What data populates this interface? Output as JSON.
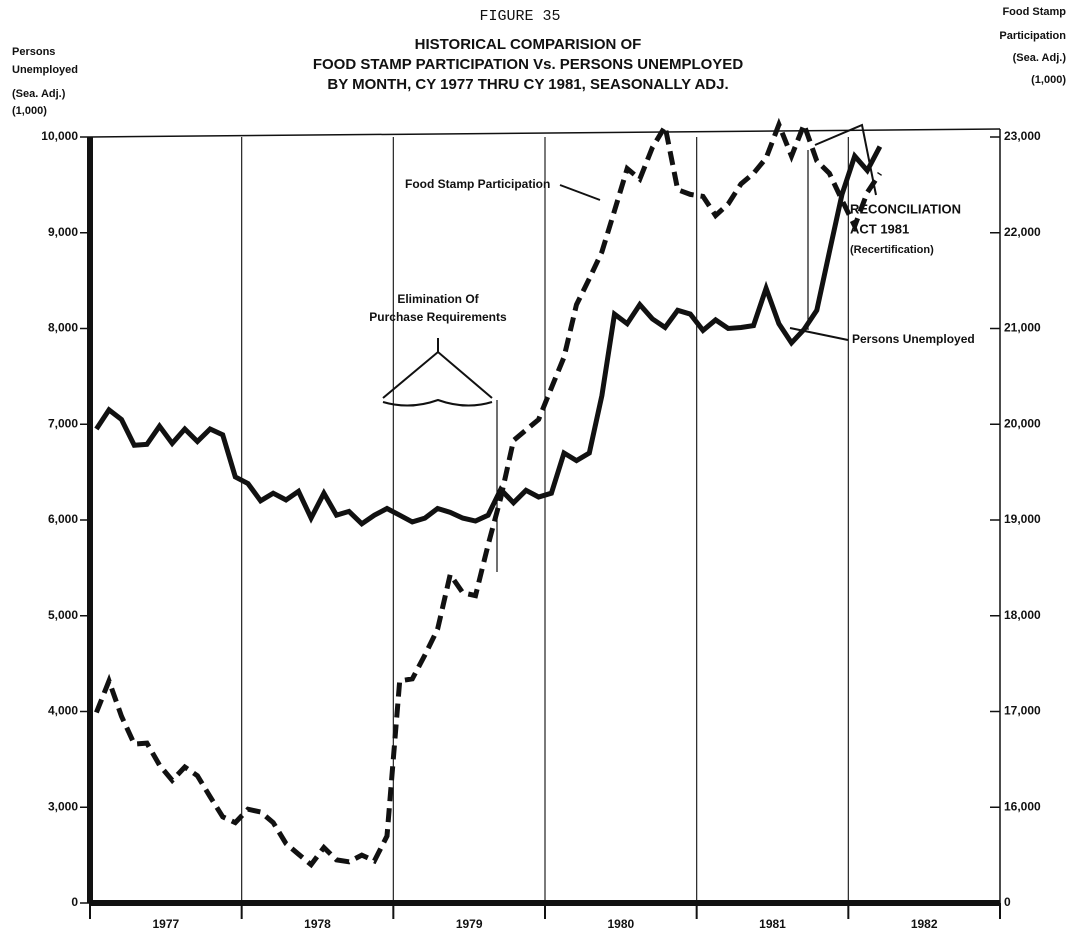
{
  "chart_data": {
    "type": "line",
    "figure_label": "FIGURE 35",
    "title": [
      "HISTORICAL COMPARISION OF",
      "FOOD STAMP PARTICIPATION Vs. PERSONS UNEMPLOYED",
      "BY MONTH, CY 1977 THRU CY 1981, SEASONALLY ADJ."
    ],
    "y_label": [
      "Persons",
      "Unemployed",
      "(Sea. Adj.)",
      "(1,000)"
    ],
    "y2_label": [
      "Food Stamp",
      "Participation",
      "(Sea. Adj.)",
      "(1,000)"
    ],
    "categories": [
      "1977",
      "1978",
      "1979",
      "1980",
      "1981",
      "1982"
    ],
    "xlim": [
      1977,
      1983
    ],
    "xticks": [
      1977,
      1978,
      1979,
      1980,
      1981,
      1982,
      1983
    ],
    "x": [
      1977.042,
      1977.125,
      1977.208,
      1977.292,
      1977.375,
      1977.458,
      1977.542,
      1977.625,
      1977.708,
      1977.792,
      1977.875,
      1977.958,
      1978.042,
      1978.125,
      1978.208,
      1978.292,
      1978.375,
      1978.458,
      1978.542,
      1978.625,
      1978.708,
      1978.792,
      1978.875,
      1978.958,
      1979.042,
      1979.125,
      1979.208,
      1979.292,
      1979.375,
      1979.458,
      1979.542,
      1979.625,
      1979.708,
      1979.792,
      1979.875,
      1979.958,
      1980.042,
      1980.125,
      1980.208,
      1980.292,
      1980.375,
      1980.458,
      1980.542,
      1980.625,
      1980.708,
      1980.792,
      1980.875,
      1980.958,
      1981.042,
      1981.125,
      1981.208,
      1981.292,
      1981.375,
      1981.458,
      1981.542,
      1981.625,
      1981.708,
      1981.792,
      1981.875,
      1981.958,
      1982.042,
      1982.125,
      1982.208
    ],
    "ylim": [
      0,
      10000
    ],
    "ybreak": [
      0,
      2000
    ],
    "yticks": [
      {
        "value": 0,
        "label": "0"
      },
      {
        "value": 3000,
        "label": "3,000"
      },
      {
        "value": 4000,
        "label": "4,000"
      },
      {
        "value": 5000,
        "label": "5,000"
      },
      {
        "value": 6000,
        "label": "6,000"
      },
      {
        "value": 7000,
        "label": "7,000"
      },
      {
        "value": 8000,
        "label": "8,000"
      },
      {
        "value": 9000,
        "label": "9,000"
      },
      {
        "value": 10000,
        "label": "10,000"
      }
    ],
    "y2lim": [
      0,
      23000
    ],
    "y2break": [
      0,
      15000
    ],
    "y2ticks": [
      {
        "value": 0,
        "label": "0"
      },
      {
        "value": 16000,
        "label": "16,000"
      },
      {
        "value": 17000,
        "label": "17,000"
      },
      {
        "value": 18000,
        "label": "18,000"
      },
      {
        "value": 19000,
        "label": "19,000"
      },
      {
        "value": 20000,
        "label": "20,000"
      },
      {
        "value": 21000,
        "label": "21,000"
      },
      {
        "value": 22000,
        "label": "22,000"
      },
      {
        "value": 23000,
        "label": "23,000"
      }
    ],
    "grid": true,
    "series": [
      {
        "name": "Persons Unemployed",
        "color": "#111111",
        "dash": "solid",
        "values": [
          6950,
          7150,
          7050,
          6780,
          6790,
          6980,
          6800,
          6950,
          6820,
          6950,
          6890,
          6450,
          6380,
          6200,
          6280,
          6210,
          6300,
          6020,
          6280,
          6050,
          6090,
          5960,
          6050,
          6120,
          6050,
          5980,
          6020,
          6120,
          6080,
          6020,
          5990,
          6050,
          6320,
          6180,
          6310,
          6240,
          6280,
          6700,
          6620,
          6700,
          7300,
          8150,
          8050,
          8250,
          8100,
          8010,
          8190,
          8150,
          7980,
          8090,
          8000,
          8010,
          8030,
          8420,
          8050,
          7850,
          7990,
          8190,
          8800,
          9400,
          9800,
          9650,
          9900
        ]
      },
      {
        "name": "Food Stamp Participation",
        "color": "#111111",
        "dash": "dashed",
        "axis": "y2",
        "values": [
          16990,
          17320,
          16950,
          16660,
          16670,
          16440,
          16280,
          16420,
          16330,
          16110,
          15900,
          15840,
          15980,
          15950,
          15840,
          15620,
          15510,
          15400,
          15580,
          15450,
          15430,
          15500,
          15440,
          15700,
          17320,
          17340,
          17590,
          17860,
          18430,
          18240,
          18210,
          18740,
          19230,
          19830,
          19940,
          20050,
          20380,
          20700,
          21250,
          21520,
          21800,
          22230,
          22670,
          22560,
          22890,
          23110,
          22450,
          22400,
          22380,
          22180,
          22300,
          22510,
          22620,
          22780,
          23130,
          22800,
          23130,
          22750,
          22620,
          22340,
          22070,
          22420,
          22620
        ]
      }
    ],
    "annotations": [
      [
        "Elimination Of",
        "Purchase Requirements"
      ],
      [
        "RECONCILIATION",
        "ACT 1981",
        "(Recertification)"
      ]
    ]
  }
}
